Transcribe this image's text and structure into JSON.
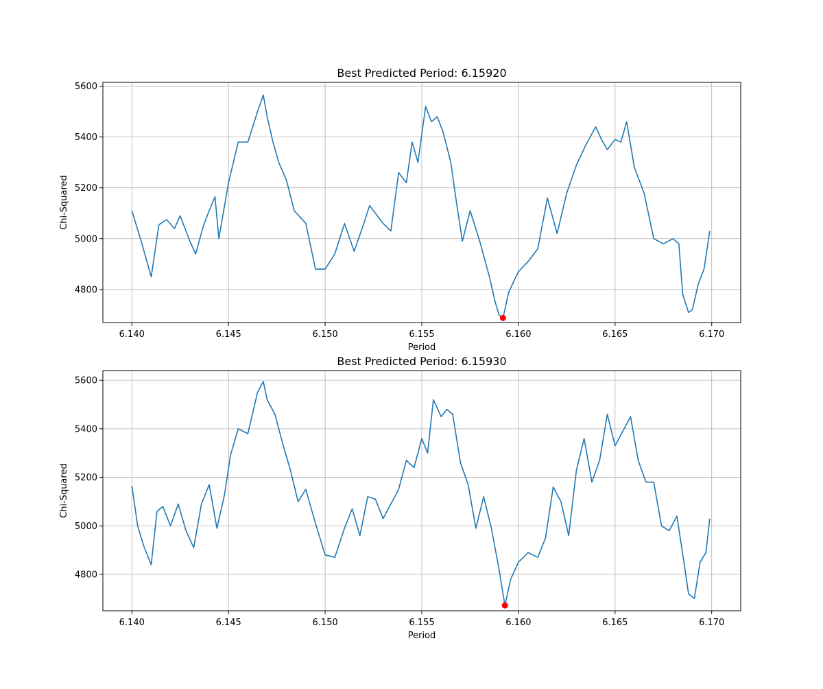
{
  "chart_data": [
    {
      "type": "line",
      "title": "Best Predicted Period: 6.15920",
      "xlabel": "Period",
      "ylabel": "Chi-Squared",
      "xlim": [
        6.1385,
        6.1715
      ],
      "ylim": [
        4670,
        5615
      ],
      "xticks": [
        6.14,
        6.145,
        6.15,
        6.155,
        6.16,
        6.165,
        6.17
      ],
      "xtick_labels": [
        "6.140",
        "6.145",
        "6.150",
        "6.155",
        "6.160",
        "6.165",
        "6.170"
      ],
      "yticks": [
        4800,
        5000,
        5200,
        5400,
        5600
      ],
      "ytick_labels": [
        "4800",
        "5000",
        "5200",
        "5400",
        "5600"
      ],
      "grid": true,
      "line_color": "#1f77b4",
      "marker_color": "#ff0000",
      "best": {
        "x": 6.1592,
        "y": 4688
      },
      "series": [
        {
          "x": [
            6.14,
            6.1405,
            6.141,
            6.1414,
            6.1418,
            6.1422,
            6.1425,
            6.143,
            6.1433,
            6.1437,
            6.144,
            6.1443,
            6.1445,
            6.145,
            6.1455,
            6.146,
            6.1465,
            6.1468,
            6.147,
            6.1473,
            6.1476,
            6.148,
            6.1484,
            6.149,
            6.1495,
            6.15,
            6.1505,
            6.151,
            6.1515,
            6.152,
            6.1523,
            6.1526,
            6.153,
            6.1534,
            6.1538,
            6.1542,
            6.1545,
            6.1548,
            6.1552,
            6.1555,
            6.1558,
            6.1561,
            6.1565,
            6.1568,
            6.1571,
            6.1575,
            6.158,
            6.1585,
            6.1588,
            6.159,
            6.1592,
            6.1595,
            6.16,
            6.1605,
            6.161,
            6.1615,
            6.162,
            6.1625,
            6.163,
            6.1635,
            6.164,
            6.1643,
            6.1646,
            6.165,
            6.1653,
            6.1656,
            6.166,
            6.1665,
            6.167,
            6.1675,
            6.168,
            6.1683,
            6.1685,
            6.1688,
            6.169,
            6.1693,
            6.1696,
            6.1699
          ],
          "y": [
            5110,
            4985,
            4850,
            5055,
            5075,
            5040,
            5090,
            4990,
            4940,
            5050,
            5110,
            5165,
            5000,
            5220,
            5380,
            5380,
            5500,
            5565,
            5480,
            5380,
            5300,
            5230,
            5110,
            5060,
            4880,
            4880,
            4940,
            5060,
            4950,
            5060,
            5130,
            5100,
            5060,
            5030,
            5260,
            5220,
            5380,
            5300,
            5520,
            5460,
            5480,
            5420,
            5300,
            5140,
            4990,
            5110,
            4990,
            4850,
            4750,
            4700,
            4688,
            4790,
            4870,
            4910,
            4960,
            5160,
            5020,
            5180,
            5290,
            5370,
            5440,
            5390,
            5350,
            5390,
            5380,
            5460,
            5280,
            5180,
            5000,
            4980,
            5000,
            4980,
            4780,
            4710,
            4720,
            4820,
            4880,
            5030
          ]
        }
      ]
    },
    {
      "type": "line",
      "title": "Best Predicted Period: 6.15930",
      "xlabel": "Period",
      "ylabel": "Chi-Squared",
      "xlim": [
        6.1385,
        6.1715
      ],
      "ylim": [
        4650,
        5640
      ],
      "xticks": [
        6.14,
        6.145,
        6.15,
        6.155,
        6.16,
        6.165,
        6.17
      ],
      "xtick_labels": [
        "6.140",
        "6.145",
        "6.150",
        "6.155",
        "6.160",
        "6.165",
        "6.170"
      ],
      "yticks": [
        4800,
        5000,
        5200,
        5400,
        5600
      ],
      "ytick_labels": [
        "4800",
        "5000",
        "5200",
        "5400",
        "5600"
      ],
      "grid": true,
      "line_color": "#1f77b4",
      "marker_color": "#ff0000",
      "best": {
        "x": 6.1593,
        "y": 4672
      },
      "series": [
        {
          "x": [
            6.14,
            6.1403,
            6.1406,
            6.141,
            6.1413,
            6.1416,
            6.142,
            6.1424,
            6.1428,
            6.1432,
            6.1436,
            6.144,
            6.1444,
            6.1448,
            6.1451,
            6.1455,
            6.146,
            6.1465,
            6.1468,
            6.147,
            6.1474,
            6.1478,
            6.1482,
            6.1486,
            6.149,
            6.1495,
            6.15,
            6.1505,
            6.151,
            6.1514,
            6.1518,
            6.1522,
            6.1526,
            6.153,
            6.1534,
            6.1538,
            6.1542,
            6.1546,
            6.155,
            6.1553,
            6.1556,
            6.156,
            6.1563,
            6.1566,
            6.157,
            6.1574,
            6.1578,
            6.1582,
            6.1586,
            6.159,
            6.1593,
            6.1596,
            6.16,
            6.1605,
            6.161,
            6.1614,
            6.1618,
            6.1622,
            6.1626,
            6.163,
            6.1634,
            6.1638,
            6.1642,
            6.1646,
            6.165,
            6.1654,
            6.1658,
            6.1662,
            6.1666,
            6.167,
            6.1674,
            6.1678,
            6.1682,
            6.1686,
            6.1688,
            6.1691,
            6.1694,
            6.1697,
            6.1699
          ],
          "y": [
            5165,
            5000,
            4920,
            4840,
            5060,
            5080,
            5000,
            5090,
            4980,
            4910,
            5090,
            5170,
            4990,
            5130,
            5290,
            5400,
            5380,
            5550,
            5595,
            5520,
            5460,
            5340,
            5230,
            5100,
            5150,
            5010,
            4880,
            4870,
            4990,
            5070,
            4960,
            5120,
            5110,
            5030,
            5090,
            5150,
            5270,
            5240,
            5360,
            5300,
            5520,
            5450,
            5480,
            5460,
            5260,
            5170,
            4990,
            5120,
            4990,
            4820,
            4672,
            4780,
            4850,
            4890,
            4870,
            4950,
            5160,
            5100,
            4960,
            5230,
            5360,
            5180,
            5270,
            5460,
            5330,
            5390,
            5450,
            5270,
            5180,
            5180,
            5000,
            4980,
            5040,
            4830,
            4720,
            4700,
            4850,
            4890,
            5030
          ]
        }
      ]
    }
  ]
}
